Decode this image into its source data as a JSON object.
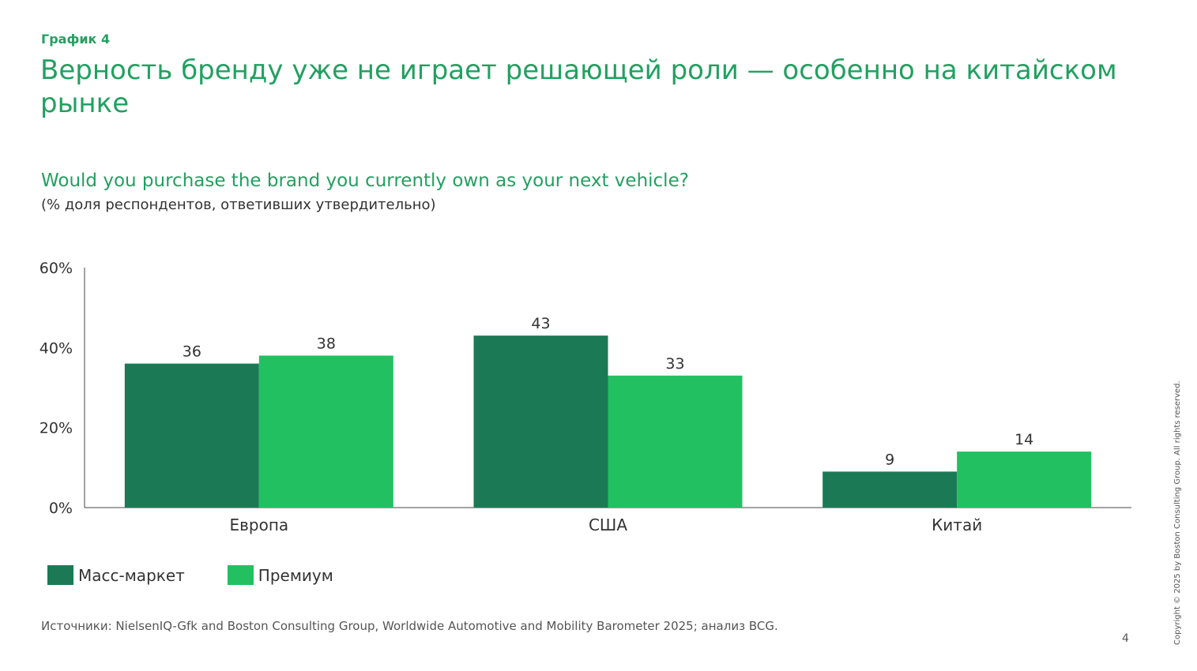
{
  "exhibit_label": "График 4",
  "headline": "Верность бренду уже не играет решающей роли — особенно на китайском рынке",
  "subtitle": "Would you purchase the brand you currently own as your next vehicle?",
  "unit_note": "(% доля респондентов, ответивших утвердительно)",
  "legend": [
    {
      "label": "Масс-маркет",
      "color": "#1b7a55"
    },
    {
      "label": "Премиум",
      "color": "#22c061"
    }
  ],
  "source": "Источники: NielsenIQ-Gfk and Boston Consulting Group, Worldwide Automotive and Mobility Barometer 2025; анализ BCG.",
  "page_number": "4",
  "copyright": "Copyright © 2025 by Boston Consulting Group. All rights reserved.",
  "chart_data": {
    "type": "bar",
    "categories": [
      "Европа",
      "США",
      "Китай"
    ],
    "series": [
      {
        "name": "Масс-маркет",
        "values": [
          36,
          43,
          9
        ],
        "labels": [
          "36",
          "43",
          "9"
        ],
        "color": "#1b7a55"
      },
      {
        "name": "Премиум",
        "values": [
          38,
          33,
          14
        ],
        "labels": [
          "38",
          "33",
          "14"
        ],
        "color": "#22c061"
      }
    ],
    "yticks": [
      0,
      20,
      40,
      60
    ],
    "ytick_labels": [
      "0%",
      "20%",
      "40%",
      "60%"
    ],
    "ylim": [
      0,
      60
    ],
    "title": "Would you purchase the brand you currently own as your next vehicle?",
    "ylabel": "(% доля респондентов, ответивших утвердительно)",
    "xlabel": "",
    "grid": false,
    "legend_position": "bottom-left"
  }
}
